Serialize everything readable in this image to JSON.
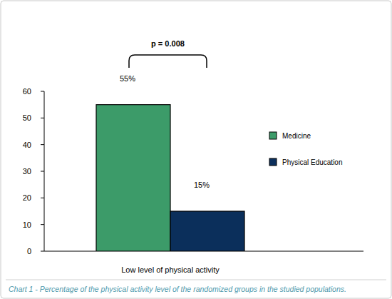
{
  "chart_data": {
    "type": "bar",
    "title": "Chart 1 - Percentage of the physical activity level of the randomized groups in the studied populations.",
    "annotation": "p = 0.008",
    "categories": [
      "Low level of physical activity"
    ],
    "series": [
      {
        "name": "Medicine",
        "color": "#3c9b69",
        "values": [
          55
        ],
        "value_labels": [
          "55%"
        ]
      },
      {
        "name": "Physical Education",
        "color": "#0b2f5b",
        "values": [
          15
        ],
        "value_labels": [
          "15%"
        ]
      }
    ],
    "ylim": [
      0,
      60
    ],
    "yticks": [
      0,
      10,
      20,
      30,
      40,
      50,
      60
    ],
    "grid": false,
    "legend": "right",
    "data_labels": true
  }
}
